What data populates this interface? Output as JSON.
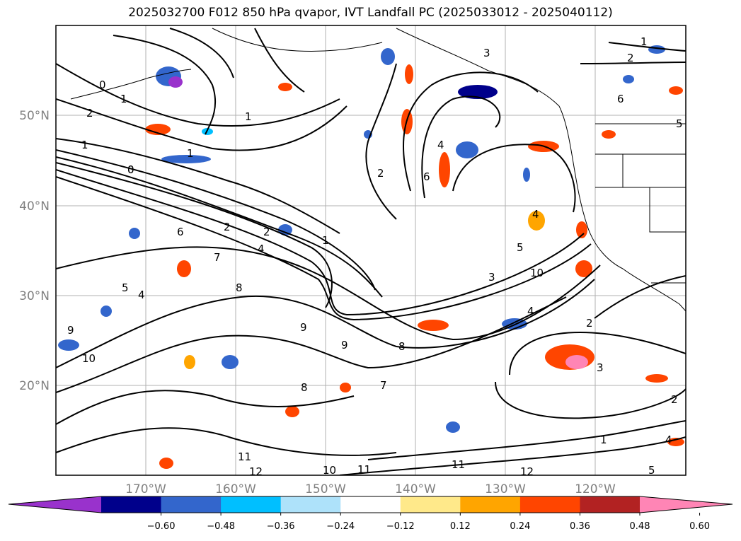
{
  "title": "2025032700 F012 850 hPa qvapor, IVT Landfall PC (2025033012 - 2025040112)",
  "map": {
    "lat_labels": [
      "50°N",
      "40°N",
      "30°N",
      "20°N"
    ],
    "lon_labels": [
      "170°W",
      "160°W",
      "150°W",
      "140°W",
      "130°W",
      "120°W"
    ],
    "contour_labels": [
      "0",
      "1",
      "2",
      "1",
      "0",
      "1",
      "2",
      "4",
      "6",
      "7",
      "8",
      "5",
      "4",
      "2",
      "9",
      "10",
      "9",
      "8",
      "7",
      "6",
      "5",
      "4",
      "3",
      "1",
      "2",
      "1",
      "0",
      "9",
      "8",
      "10",
      "11",
      "12",
      "10",
      "11",
      "12",
      "11",
      "1",
      "2",
      "3",
      "4",
      "5",
      "6",
      "4",
      "3",
      "2",
      "1",
      "2",
      "4",
      "5"
    ]
  },
  "colorbar": {
    "colors": [
      "#9932cc",
      "#00008b",
      "#3366cc",
      "#00bfff",
      "#aee2fa",
      "#ffffff",
      "#ffe98a",
      "#ffa500",
      "#ff4500",
      "#b22222",
      "#ff85b5"
    ],
    "tick_labels": [
      "−0.60",
      "−0.48",
      "−0.36",
      "−0.24",
      "−0.12",
      "0.12",
      "0.24",
      "0.36",
      "0.48",
      "0.60"
    ]
  }
}
